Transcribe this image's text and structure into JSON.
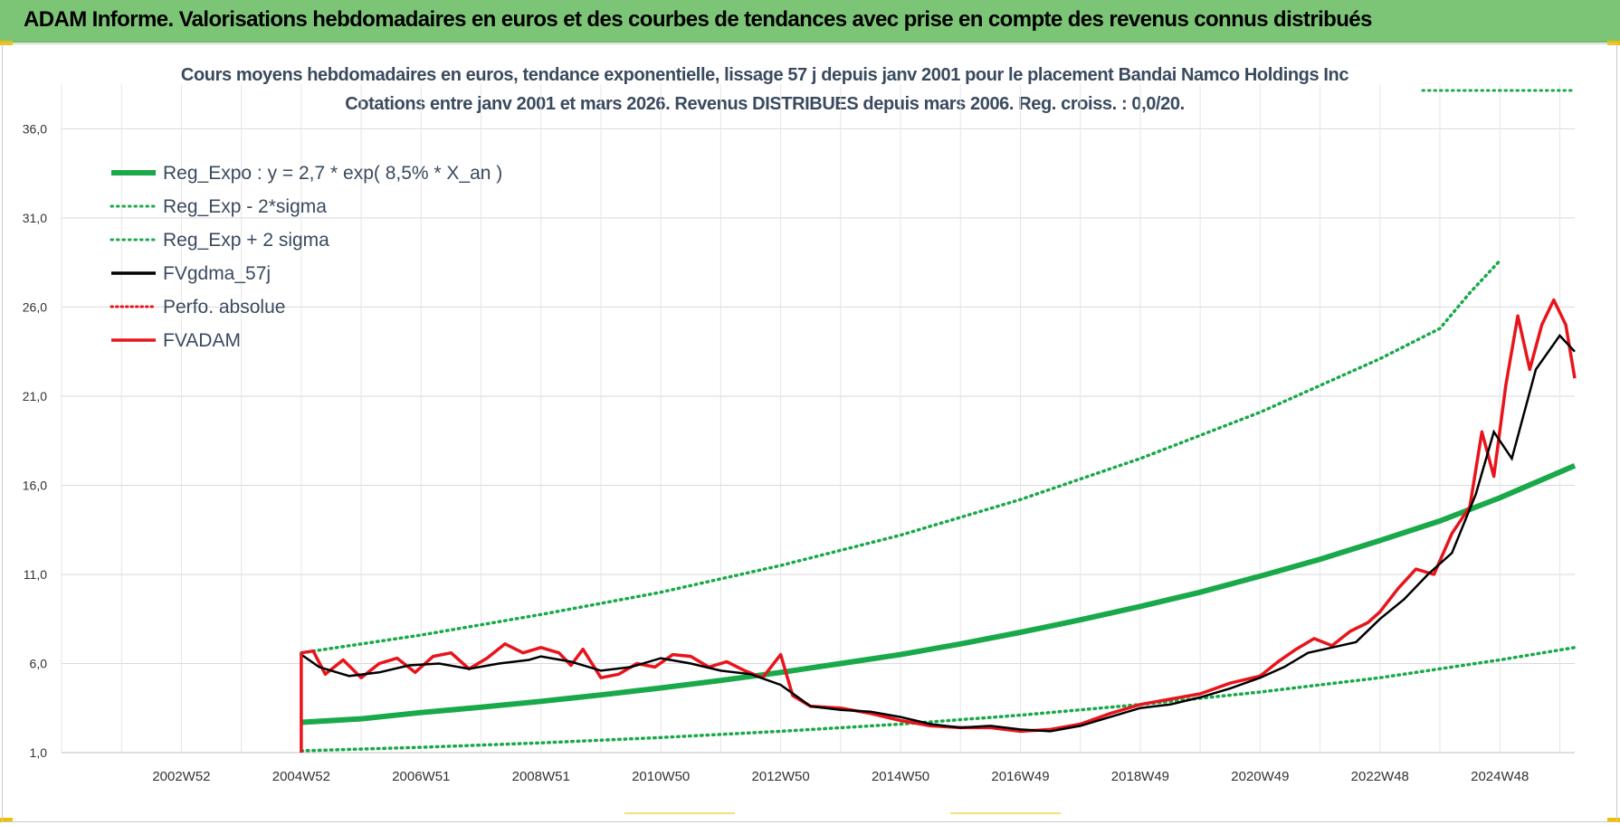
{
  "header": {
    "title": "ADAM Informe. Valorisations hebdomadaires en euros et des courbes de tendances avec prise en compte des revenus connus distribués"
  },
  "colors": {
    "banner": "#7cc576",
    "green": "#19a94a",
    "black": "#000000",
    "red": "#e8141b",
    "grid": "#d9d9d9"
  },
  "chart_data": {
    "type": "line",
    "title_line1": "Cours moyens hebdomadaires en euros, tendance exponentielle, lissage 57 j depuis janv 2001 pour le placement Bandai Namco Holdings Inc",
    "title_line2": "Cotations entre janv 2001 et mars 2026. Revenus DISTRIBUES depuis mars 2006. Reg. croiss. : 0,0/20.",
    "xlabel": "",
    "ylabel": "",
    "ylim": [
      1.0,
      38.0
    ],
    "xlim": [
      2001.0,
      2026.25
    ],
    "y_ticks": [
      1.0,
      6.0,
      11.0,
      16.0,
      21.0,
      26.0,
      31.0,
      36.0
    ],
    "y_tick_labels": [
      "1,0",
      "6,0",
      "11,0",
      "16,0",
      "21,0",
      "26,0",
      "31,0",
      "36,0"
    ],
    "x_tick_labels": [
      "2002W52",
      "2004W52",
      "2006W51",
      "2008W51",
      "2010W50",
      "2012W50",
      "2014W50",
      "2016W49",
      "2018W49",
      "2020W49",
      "2022W48",
      "2024W48"
    ],
    "x_tick_years": [
      2003.0,
      2005.0,
      2007.0,
      2009.0,
      2011.0,
      2013.0,
      2015.0,
      2017.0,
      2019.0,
      2021.0,
      2023.0,
      2025.0
    ],
    "legend": [
      {
        "label": "Reg_Expo : y = 2,7 * exp( 8,5% *  X_an )",
        "style": "solid-green"
      },
      {
        "label": "Reg_Exp - 2*sigma",
        "style": "dotted-green"
      },
      {
        "label": "Reg_Exp + 2 sigma",
        "style": "dotted-green"
      },
      {
        "label": "FVgdma_57j",
        "style": "solid-black"
      },
      {
        "label": "Perfo. absolue",
        "style": "dotted-red"
      },
      {
        "label": "FVADAM",
        "style": "solid-red"
      }
    ],
    "series": [
      {
        "name": "Reg_Expo : y = 2,7 * exp( 8,5% *  X_an )",
        "x": [
          2005.0,
          2006.0,
          2007.0,
          2008.0,
          2009.0,
          2010.0,
          2011.0,
          2012.0,
          2013.0,
          2014.0,
          2015.0,
          2016.0,
          2017.0,
          2018.0,
          2019.0,
          2020.0,
          2021.0,
          2022.0,
          2023.0,
          2024.0,
          2025.0,
          2026.25
        ],
        "values": [
          2.7,
          2.9,
          3.25,
          3.55,
          3.88,
          4.24,
          4.63,
          5.05,
          5.5,
          6.0,
          6.5,
          7.1,
          7.75,
          8.45,
          9.2,
          10.0,
          10.9,
          11.85,
          12.9,
          14.0,
          15.3,
          17.1
        ]
      },
      {
        "name": "Reg_Exp - 2*sigma",
        "x": [
          2005.0,
          2007.0,
          2009.0,
          2011.0,
          2013.0,
          2015.0,
          2017.0,
          2019.0,
          2021.0,
          2023.0,
          2025.0,
          2026.25
        ],
        "values": [
          1.1,
          1.3,
          1.55,
          1.85,
          2.2,
          2.6,
          3.1,
          3.7,
          4.4,
          5.2,
          6.2,
          6.9
        ]
      },
      {
        "name": "Reg_Exp + 2 sigma",
        "x": [
          2005.0,
          2007.0,
          2009.0,
          2011.0,
          2013.0,
          2015.0,
          2017.0,
          2019.0,
          2021.0,
          2023.0,
          2024.0,
          2024.5,
          2025.0
        ],
        "values": [
          6.6,
          7.6,
          8.75,
          10.0,
          11.5,
          13.2,
          15.2,
          17.5,
          20.1,
          23.1,
          24.8,
          26.8,
          28.6
        ]
      },
      {
        "name": "FVgdma_57j",
        "x": [
          2005.0,
          2005.3,
          2005.8,
          2006.3,
          2006.8,
          2007.3,
          2007.8,
          2008.3,
          2008.8,
          2009.0,
          2009.5,
          2010.0,
          2010.5,
          2011.0,
          2011.5,
          2012.0,
          2012.5,
          2013.0,
          2013.5,
          2014.0,
          2014.5,
          2015.0,
          2015.5,
          2016.0,
          2016.5,
          2017.0,
          2017.5,
          2018.0,
          2018.5,
          2019.0,
          2019.5,
          2020.0,
          2020.5,
          2021.0,
          2021.4,
          2021.8,
          2022.2,
          2022.6,
          2023.0,
          2023.4,
          2023.8,
          2024.2,
          2024.6,
          2024.9,
          2025.2,
          2025.6,
          2026.0,
          2026.25
        ],
        "values": [
          6.5,
          5.8,
          5.3,
          5.5,
          5.9,
          6.0,
          5.7,
          6.0,
          6.2,
          6.4,
          6.1,
          5.6,
          5.8,
          6.3,
          6.0,
          5.6,
          5.4,
          4.8,
          3.6,
          3.4,
          3.3,
          3.0,
          2.6,
          2.4,
          2.5,
          2.3,
          2.2,
          2.5,
          3.0,
          3.5,
          3.7,
          4.1,
          4.6,
          5.2,
          5.8,
          6.6,
          6.9,
          7.2,
          8.5,
          9.6,
          11.0,
          12.2,
          15.5,
          19.0,
          17.5,
          22.5,
          24.4,
          23.5
        ]
      },
      {
        "name": "FVADAM",
        "x": [
          2005.0,
          2005.2,
          2005.4,
          2005.7,
          2006.0,
          2006.3,
          2006.6,
          2006.9,
          2007.2,
          2007.5,
          2007.8,
          2008.1,
          2008.4,
          2008.7,
          2009.0,
          2009.3,
          2009.5,
          2009.7,
          2010.0,
          2010.3,
          2010.6,
          2010.9,
          2011.2,
          2011.5,
          2011.8,
          2012.1,
          2012.4,
          2012.7,
          2013.0,
          2013.2,
          2013.5,
          2014.0,
          2014.5,
          2015.0,
          2015.5,
          2016.0,
          2016.5,
          2017.0,
          2017.5,
          2018.0,
          2018.5,
          2019.0,
          2019.5,
          2020.0,
          2020.5,
          2021.0,
          2021.3,
          2021.6,
          2021.9,
          2022.2,
          2022.5,
          2022.8,
          2023.0,
          2023.3,
          2023.6,
          2023.9,
          2024.2,
          2024.5,
          2024.7,
          2024.9,
          2025.1,
          2025.3,
          2025.5,
          2025.7,
          2025.9,
          2026.1,
          2026.25
        ],
        "values": [
          6.6,
          6.7,
          5.4,
          6.2,
          5.2,
          6.0,
          6.3,
          5.5,
          6.4,
          6.6,
          5.7,
          6.3,
          7.1,
          6.6,
          6.9,
          6.6,
          5.9,
          6.8,
          5.2,
          5.4,
          6.0,
          5.8,
          6.5,
          6.4,
          5.8,
          6.1,
          5.6,
          5.2,
          6.5,
          4.2,
          3.6,
          3.5,
          3.2,
          2.8,
          2.5,
          2.4,
          2.4,
          2.2,
          2.3,
          2.6,
          3.2,
          3.7,
          4.0,
          4.3,
          4.9,
          5.3,
          6.1,
          6.8,
          7.4,
          7.0,
          7.8,
          8.3,
          8.9,
          10.2,
          11.3,
          11.0,
          13.3,
          14.8,
          19.0,
          16.5,
          21.6,
          25.5,
          22.5,
          25.0,
          26.4,
          25.0,
          22.0
        ]
      }
    ]
  },
  "bottom_marks": [
    "yellow-mark-left",
    "yellow-mark-right"
  ]
}
